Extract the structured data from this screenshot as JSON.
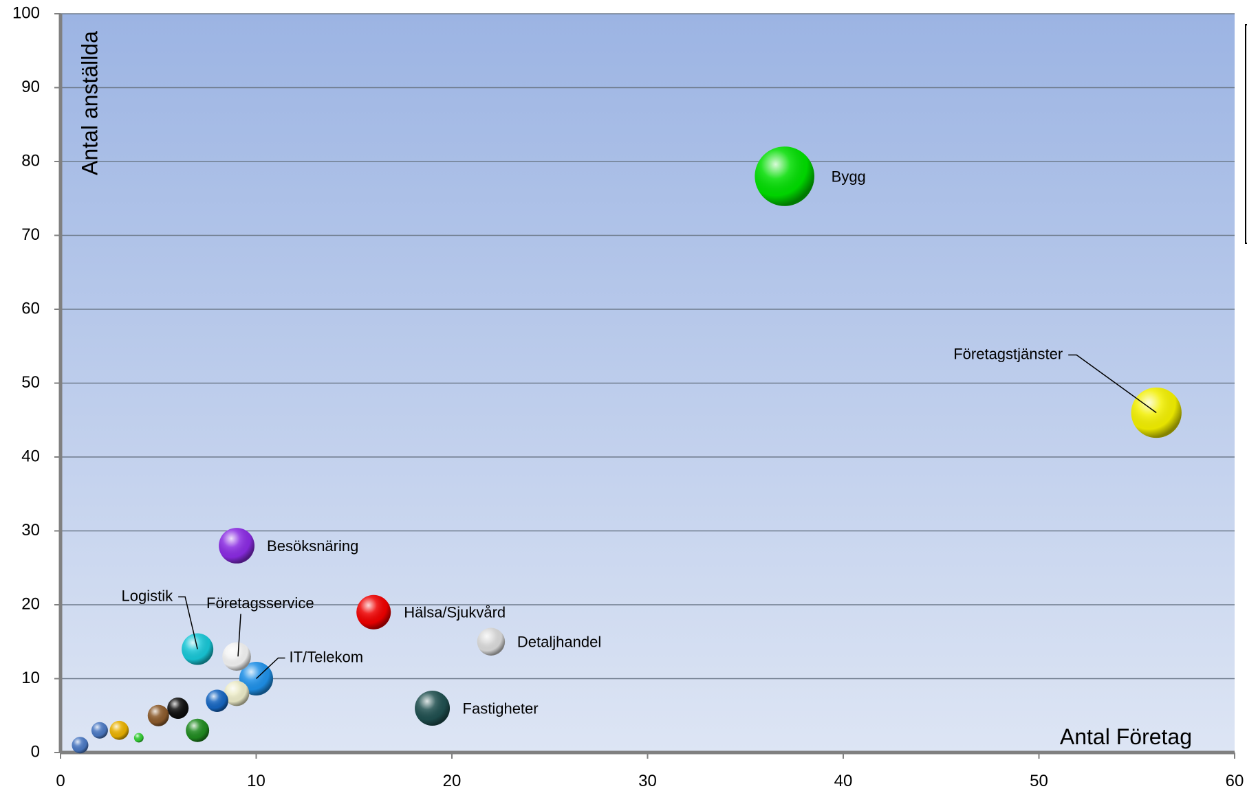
{
  "chart_data": {
    "type": "bubble",
    "title": "",
    "xlabel": "Antal Företag",
    "ylabel": "Antal anställda",
    "xlim": [
      0,
      60
    ],
    "ylim": [
      0,
      100
    ],
    "x_ticks": [
      0,
      10,
      20,
      30,
      40,
      50,
      60
    ],
    "y_ticks": [
      0,
      10,
      20,
      30,
      40,
      50,
      60,
      70,
      80,
      90,
      100
    ],
    "grid": "horizontal",
    "background": [
      "#9cb4e3",
      "#dde5f4"
    ],
    "legend": "right (cut off)",
    "points": [
      {
        "label": "Bygg",
        "x": 37,
        "y": 78,
        "size": 78,
        "color": "#00dd00"
      },
      {
        "label": "Företagstjänster",
        "x": 56,
        "y": 46,
        "size": 56,
        "color": "#f2ef00"
      },
      {
        "label": "Besöksnäring",
        "x": 9,
        "y": 28,
        "size": 28,
        "color": "#8a2be2"
      },
      {
        "label": "Hälsa/Sjukvård",
        "x": 16,
        "y": 19,
        "size": 26,
        "color": "#ee0000"
      },
      {
        "label": "Detaljhandel",
        "x": 22,
        "y": 15,
        "size": 17,
        "color": "#d9d9d9"
      },
      {
        "label": "Logistik",
        "x": 7,
        "y": 14,
        "size": 22,
        "color": "#17c6d6"
      },
      {
        "label": "Företagsservice",
        "x": 9,
        "y": 13,
        "size": 18,
        "color": "#f2f2f2"
      },
      {
        "label": "IT/Telekom",
        "x": 10,
        "y": 10,
        "size": 25,
        "color": "#1e90e8"
      },
      {
        "label": "Fastigheter",
        "x": 19,
        "y": 6,
        "size": 27,
        "color": "#1f4f4f"
      },
      {
        "label": "",
        "x": 9,
        "y": 8,
        "size": 14,
        "color": "#ecebc8"
      },
      {
        "label": "",
        "x": 8,
        "y": 7,
        "size": 11,
        "color": "#1565c0"
      },
      {
        "label": "",
        "x": 6,
        "y": 6,
        "size": 10,
        "color": "#111111"
      },
      {
        "label": "",
        "x": 5,
        "y": 5,
        "size": 10,
        "color": "#8b5a2b"
      },
      {
        "label": "",
        "x": 7,
        "y": 3,
        "size": 12,
        "color": "#1f8a1f"
      },
      {
        "label": "",
        "x": 3,
        "y": 3,
        "size": 8,
        "color": "#e8b000"
      },
      {
        "label": "",
        "x": 2,
        "y": 3,
        "size": 6,
        "color": "#4a78c2"
      },
      {
        "label": "",
        "x": 1,
        "y": 1,
        "size": 6,
        "color": "#4a78c2"
      },
      {
        "label": "",
        "x": 4,
        "y": 2,
        "size": 2,
        "color": "#33cc33"
      }
    ]
  }
}
